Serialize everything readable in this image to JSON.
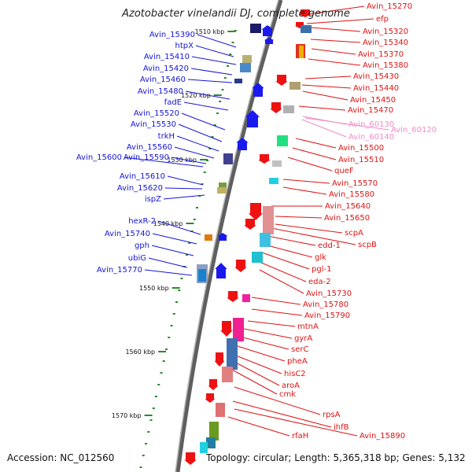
{
  "title": "Azotobacter vinelandii DJ, complete genome",
  "accession": "Accession: NC_012560",
  "summary": "Topology: circular; Length: 5,365,318 bp; Genes: 5,132",
  "colors": {
    "left_label": "#1515d6",
    "right_label": "#dd1414",
    "rna_label": "#f08cc8",
    "backbone": "#7a7a7a",
    "tick_dot": "#2a8a2a"
  },
  "scale_ticks": [
    "1510 kbp",
    "1520 kbp",
    "1530 kbp",
    "1540 kbp",
    "1550 kbp",
    "1560 kbp",
    "1570 kbp"
  ],
  "left_labels": [
    "Avin_15390",
    "htpX",
    "Avin_15410",
    "Avin_15420",
    "Avin_15460",
    "Avin_15480",
    "fadE",
    "Avin_15520",
    "Avin_15530",
    "trkH",
    "Avin_15560",
    "Avin_15600",
    "Avin_15590",
    "Avin_15610",
    "Avin_15620",
    "ispZ",
    "hexR-2",
    "Avin_15740",
    "gph",
    "ubiG",
    "Avin_15770"
  ],
  "right_labels": [
    "Avin_15270",
    "efp",
    "Avin_15320",
    "Avin_15340",
    "Avin_15370",
    "Avin_15380",
    "Avin_15430",
    "Avin_15440",
    "Avin_15450",
    "Avin_15470",
    "Avin_15500",
    "Avin_15510",
    "queF",
    "Avin_15570",
    "Avin_15580",
    "Avin_15640",
    "Avin_15650",
    "scpA",
    "scpB",
    "edd-1",
    "glk",
    "pgl-1",
    "eda-2",
    "Avin_15730",
    "Avin_15780",
    "Avin_15790",
    "mtnA",
    "gyrA",
    "serC",
    "pheA",
    "hisC2",
    "aroA",
    "cmk",
    "rpsA",
    "ihfB",
    "Avin_15890",
    "rfaH"
  ],
  "rna_labels": [
    "Avin_60130",
    "Avin_60120",
    "Avin_60140"
  ]
}
